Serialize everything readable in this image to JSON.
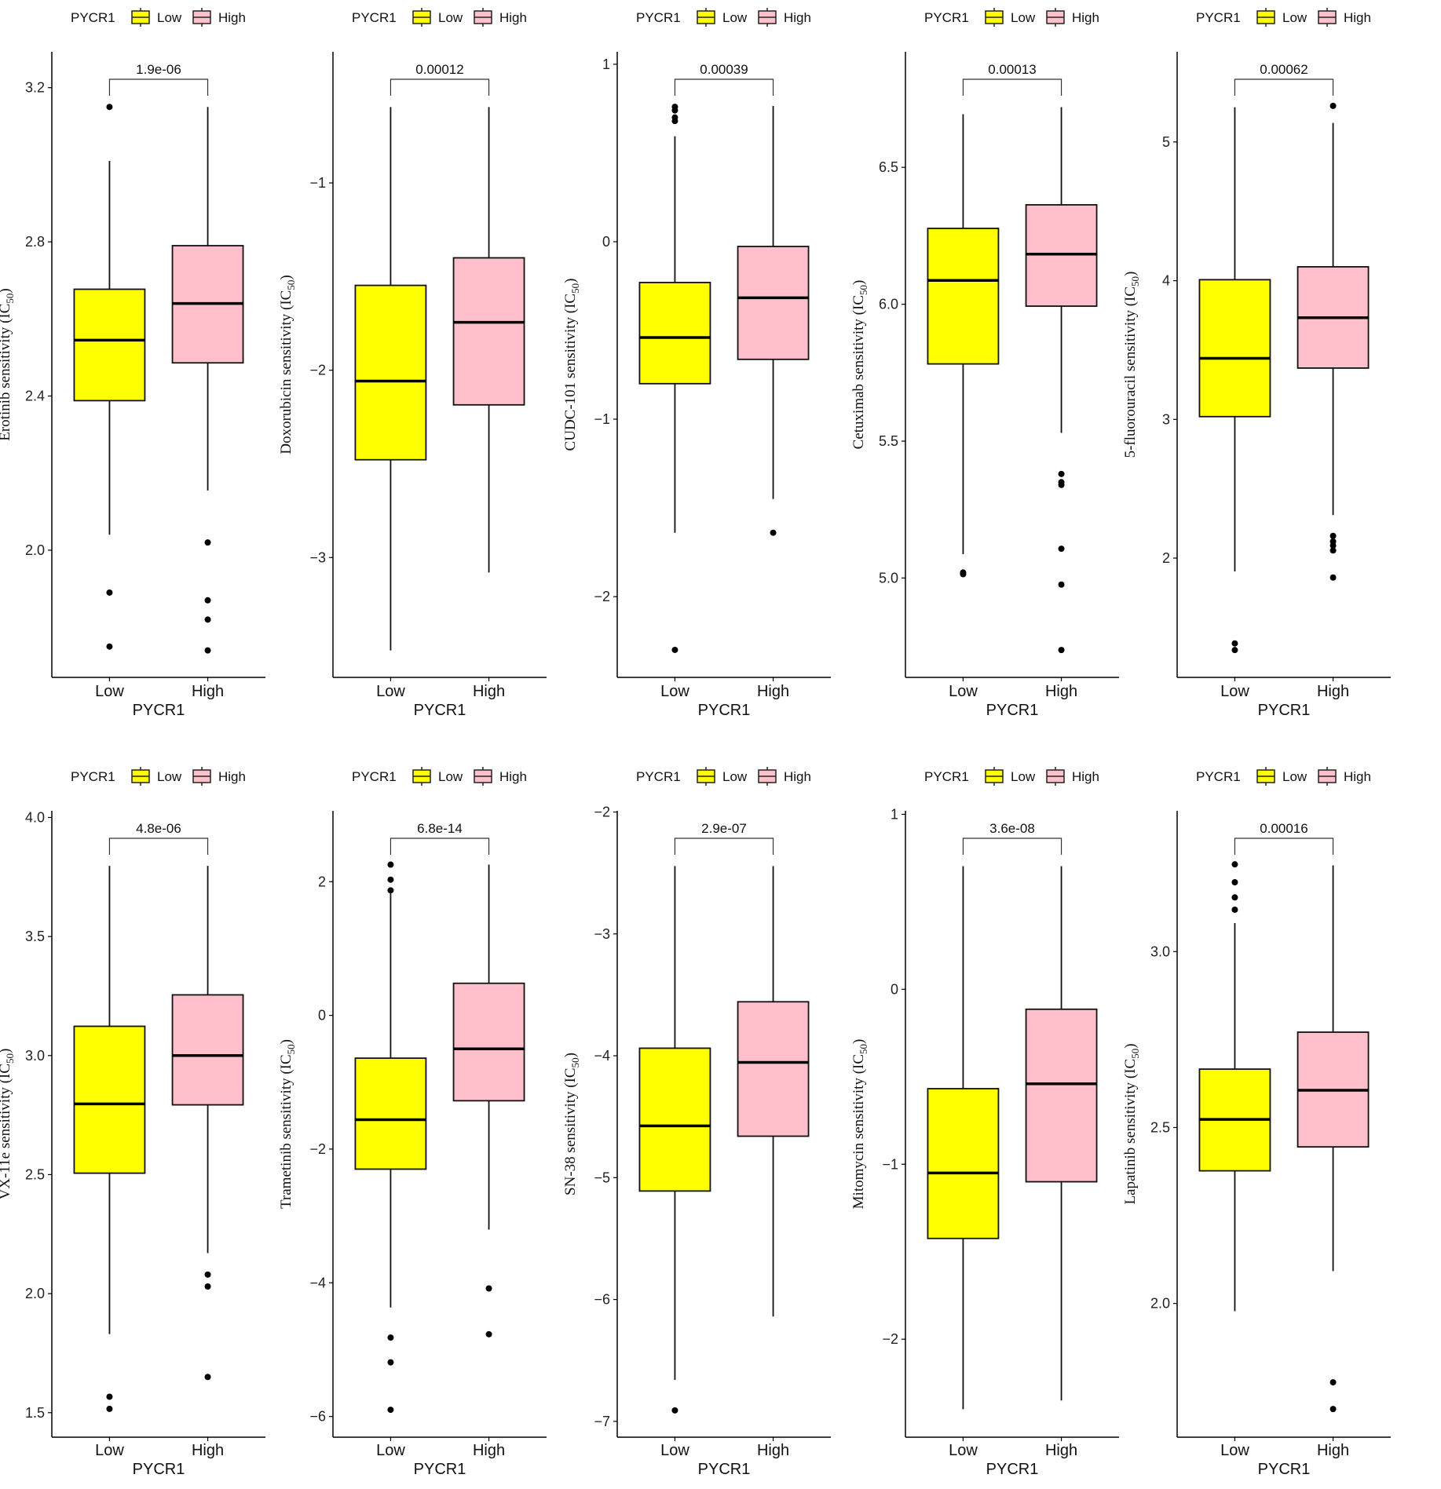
{
  "legend": {
    "title": "PYCR1",
    "items": [
      {
        "label": "Low",
        "color": "#ffff00"
      },
      {
        "label": "High",
        "color": "#ffc0cb"
      }
    ]
  },
  "xlabel": "PYCR1",
  "categories": [
    "Low",
    "High"
  ],
  "ylabel_unit": "IC",
  "ylabel_sub": "50",
  "chart_data": [
    {
      "type": "box",
      "ylabel": "Erotinib sensitivity",
      "pvalue": "1.9e-06",
      "ylim": [
        1.67,
        3.293
      ],
      "ticks": [
        2.0,
        2.4,
        2.8,
        3.2
      ],
      "tick_labels": [
        "2.0",
        "2.4",
        "2.8",
        "3.2"
      ],
      "groups": [
        {
          "name": "Low",
          "min": 2.04,
          "q1": 2.388,
          "median": 2.545,
          "q3": 2.677,
          "max": 3.01,
          "outliers": [
            3.15,
            1.89,
            1.75
          ]
        },
        {
          "name": "High",
          "min": 2.155,
          "q1": 2.486,
          "median": 2.64,
          "q3": 2.79,
          "max": 3.15,
          "outliers": [
            2.02,
            1.87,
            1.82,
            1.74
          ]
        }
      ]
    },
    {
      "type": "box",
      "ylabel": "Doxorubicin sensitivity",
      "pvalue": "0.00012",
      "ylim": [
        -3.64,
        -0.3
      ],
      "ticks": [
        -1,
        -2,
        -3
      ],
      "tick_labels": [
        "−1",
        "−2",
        "−3"
      ],
      "groups": [
        {
          "name": "Low",
          "min": -3.496,
          "q1": -2.478,
          "median": -2.058,
          "q3": -1.547,
          "max": -0.595,
          "outliers": []
        },
        {
          "name": "High",
          "min": -3.08,
          "q1": -2.185,
          "median": -1.744,
          "q3": -1.4,
          "max": -0.595,
          "outliers": []
        }
      ]
    },
    {
      "type": "box",
      "ylabel": "CUDC-101 sensitivity",
      "pvalue": "0.00039",
      "ylim": [
        -2.455,
        1.07
      ],
      "ticks": [
        1,
        0,
        -1,
        -2
      ],
      "tick_labels": [
        "1",
        "0",
        "−1",
        "−2"
      ],
      "groups": [
        {
          "name": "Low",
          "min": -1.64,
          "q1": -0.8,
          "median": -0.54,
          "q3": -0.23,
          "max": 0.594,
          "outliers": [
            0.76,
            0.74,
            0.7,
            0.68,
            -2.3
          ]
        },
        {
          "name": "High",
          "min": -1.45,
          "q1": -0.663,
          "median": -0.316,
          "q3": -0.027,
          "max": 0.765,
          "outliers": [
            -1.64
          ]
        }
      ]
    },
    {
      "type": "box",
      "ylabel": "Cetuximab sensitivity",
      "pvalue": "0.00013",
      "ylim": [
        4.637,
        6.922
      ],
      "ticks": [
        5.0,
        5.5,
        6.0,
        6.5
      ],
      "tick_labels": [
        "5.0",
        "5.5",
        "6.0",
        "6.5"
      ],
      "groups": [
        {
          "name": "Low",
          "min": 5.087,
          "q1": 5.782,
          "median": 6.087,
          "q3": 6.277,
          "max": 6.694,
          "outliers": [
            5.02,
            5.014
          ]
        },
        {
          "name": "High",
          "min": 5.53,
          "q1": 5.993,
          "median": 6.183,
          "q3": 6.363,
          "max": 6.72,
          "outliers": [
            5.38,
            5.35,
            5.34,
            5.107,
            4.976,
            4.737
          ]
        }
      ]
    },
    {
      "type": "box",
      "ylabel": "5-fluorouracil sensitivity",
      "pvalue": "0.00062",
      "ylim": [
        1.14,
        5.65
      ],
      "ticks": [
        2,
        3,
        4,
        5
      ],
      "tick_labels": [
        "2",
        "3",
        "4",
        "5"
      ],
      "groups": [
        {
          "name": "Low",
          "min": 1.904,
          "q1": 3.02,
          "median": 3.44,
          "q3": 4.007,
          "max": 5.25,
          "outliers": [
            1.385,
            1.337
          ]
        },
        {
          "name": "High",
          "min": 2.31,
          "q1": 3.37,
          "median": 3.733,
          "q3": 4.1,
          "max": 5.137,
          "outliers": [
            5.26,
            2.16,
            2.12,
            2.09,
            2.055,
            1.86
          ]
        }
      ]
    },
    {
      "type": "box",
      "ylabel": "VX-11e sensitivity",
      "pvalue": "4.8e-06",
      "ylim": [
        1.397,
        4.028
      ],
      "ticks": [
        1.5,
        2.0,
        2.5,
        3.0,
        3.5,
        4.0
      ],
      "tick_labels": [
        "1.5",
        "2.0",
        "2.5",
        "3.0",
        "3.5",
        "4.0"
      ],
      "groups": [
        {
          "name": "Low",
          "min": 1.83,
          "q1": 2.506,
          "median": 2.797,
          "q3": 3.123,
          "max": 3.797,
          "outliers": [
            1.567,
            1.516
          ]
        },
        {
          "name": "High",
          "min": 2.17,
          "q1": 2.793,
          "median": 3.0,
          "q3": 3.255,
          "max": 3.797,
          "outliers": [
            2.08,
            2.03,
            1.65
          ]
        }
      ]
    },
    {
      "type": "box",
      "ylabel": "Trametinib sensitivity",
      "pvalue": "6.8e-14",
      "ylim": [
        -6.31,
        3.06
      ],
      "ticks": [
        2,
        0,
        -2,
        -4,
        -6
      ],
      "tick_labels": [
        "2",
        "0",
        "−2",
        "−4",
        "−6"
      ],
      "groups": [
        {
          "name": "Low",
          "min": -4.37,
          "q1": -2.3,
          "median": -1.56,
          "q3": -0.64,
          "max": 1.83,
          "outliers": [
            2.255,
            2.03,
            1.87,
            -4.82,
            -5.19,
            -5.9
          ]
        },
        {
          "name": "High",
          "min": -3.205,
          "q1": -1.277,
          "median": -0.5,
          "q3": 0.48,
          "max": 2.255,
          "outliers": [
            -4.085,
            -4.77
          ]
        }
      ]
    },
    {
      "type": "box",
      "ylabel": "SN-38 sensitivity",
      "pvalue": "2.9e-07",
      "ylim": [
        -7.13,
        -1.99
      ],
      "ticks": [
        -2,
        -3,
        -4,
        -5,
        -6,
        -7
      ],
      "tick_labels": [
        "−2",
        "−3",
        "−4",
        "−5",
        "−6",
        "−7"
      ],
      "groups": [
        {
          "name": "Low",
          "min": -6.66,
          "q1": -5.11,
          "median": -4.575,
          "q3": -3.938,
          "max": -2.443,
          "outliers": [
            -6.91
          ]
        },
        {
          "name": "High",
          "min": -6.14,
          "q1": -4.66,
          "median": -4.054,
          "q3": -3.557,
          "max": -2.443,
          "outliers": []
        }
      ]
    },
    {
      "type": "box",
      "ylabel": "Mitomycin sensitivity",
      "pvalue": "3.6e-08",
      "ylim": [
        -2.56,
        1.02
      ],
      "ticks": [
        1,
        0,
        -1,
        -2
      ],
      "tick_labels": [
        "1",
        "0",
        "−1",
        "−2"
      ],
      "groups": [
        {
          "name": "Low",
          "min": -2.4,
          "q1": -1.424,
          "median": -1.05,
          "q3": -0.568,
          "max": 0.704,
          "outliers": []
        },
        {
          "name": "High",
          "min": -2.35,
          "q1": -1.1,
          "median": -0.54,
          "q3": -0.114,
          "max": 0.704,
          "outliers": []
        }
      ]
    },
    {
      "type": "box",
      "ylabel": "Lapatinib sensitivity",
      "pvalue": "0.00016",
      "ylim": [
        1.62,
        3.4
      ],
      "ticks": [
        2.0,
        2.5,
        3.0
      ],
      "tick_labels": [
        "2.0",
        "2.5",
        "3.0"
      ],
      "groups": [
        {
          "name": "Low",
          "min": 1.978,
          "q1": 2.377,
          "median": 2.523,
          "q3": 2.666,
          "max": 3.081,
          "outliers": [
            3.248,
            3.197,
            3.154,
            3.119
          ]
        },
        {
          "name": "High",
          "min": 2.092,
          "q1": 2.445,
          "median": 2.606,
          "q3": 2.771,
          "max": 3.245,
          "outliers": [
            1.776,
            1.7
          ]
        }
      ]
    }
  ]
}
